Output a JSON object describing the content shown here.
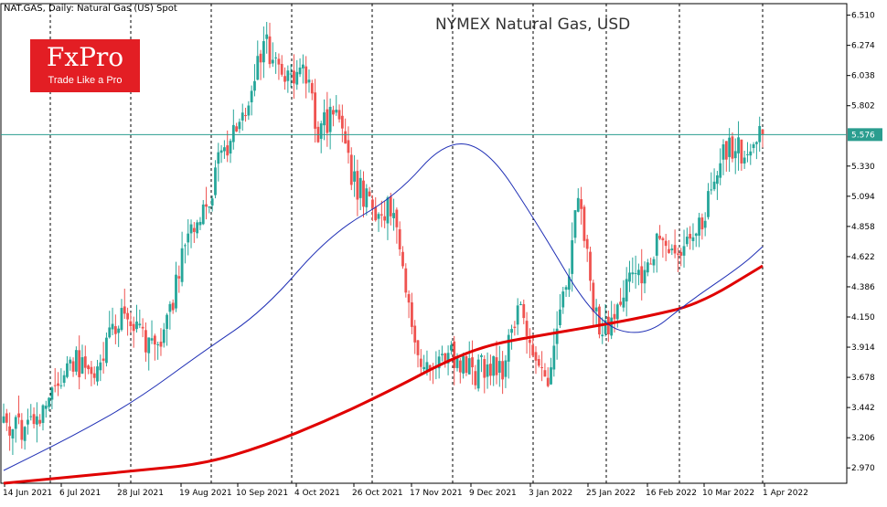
{
  "header": {
    "symbol_label": "NAT.GAS, Daily:  Natural Gas (US) Spot",
    "title": "NYMEX Natural Gas, USD"
  },
  "logo": {
    "brand": "FxPro",
    "tagline": "Trade Like a Pro",
    "color": "#e31e24"
  },
  "colors": {
    "bull": "#26a69a",
    "bear": "#ef5350",
    "ma_short": "#1f2fb5",
    "ma_long": "#e00000",
    "price_line": "#2a9d8f"
  },
  "chart_data": {
    "type": "candlestick",
    "title": "NYMEX Natural Gas, USD",
    "ylim": [
      2.85,
      6.6
    ],
    "y_ticks": [
      "6.510",
      "6.274",
      "6.038",
      "5.802",
      "5.576",
      "5.330",
      "5.094",
      "4.858",
      "4.622",
      "4.386",
      "4.150",
      "3.914",
      "3.678",
      "3.442",
      "3.206",
      "2.970"
    ],
    "x_ticks": [
      "14 Jun 2021",
      "6 Jul 2021",
      "28 Jul 2021",
      "19 Aug 2021",
      "10 Sep 2021",
      "4 Oct 2021",
      "26 Oct 2021",
      "17 Nov 2021",
      "9 Dec 2021",
      "3 Jan 2022",
      "25 Jan 2022",
      "16 Feb 2022",
      "10 Mar 2022",
      "1 Apr 2022"
    ],
    "current_price": "5.576",
    "x_start_date": "2021-06-14",
    "trend_anchors": [
      [
        0,
        3.3
      ],
      [
        8,
        3.25
      ],
      [
        22,
        3.8
      ],
      [
        30,
        3.75
      ],
      [
        38,
        4.15
      ],
      [
        45,
        4.0
      ],
      [
        52,
        3.9
      ],
      [
        60,
        4.7
      ],
      [
        65,
        4.9
      ],
      [
        72,
        5.4
      ],
      [
        76,
        5.6
      ],
      [
        82,
        5.95
      ],
      [
        86,
        6.3
      ],
      [
        90,
        6.1
      ],
      [
        96,
        5.95
      ],
      [
        100,
        6.05
      ],
      [
        104,
        5.6
      ],
      [
        110,
        5.75
      ],
      [
        116,
        5.2
      ],
      [
        122,
        5.0
      ],
      [
        128,
        5.0
      ],
      [
        131,
        4.7
      ],
      [
        135,
        4.0
      ],
      [
        140,
        3.75
      ],
      [
        148,
        3.85
      ],
      [
        155,
        3.7
      ],
      [
        160,
        3.8
      ],
      [
        165,
        3.75
      ],
      [
        170,
        4.2
      ],
      [
        176,
        3.9
      ],
      [
        180,
        3.7
      ],
      [
        186,
        4.4
      ],
      [
        190,
        5.1
      ],
      [
        194,
        4.4
      ],
      [
        197,
        4.0
      ],
      [
        202,
        4.1
      ],
      [
        206,
        4.4
      ],
      [
        212,
        4.5
      ],
      [
        216,
        4.7
      ],
      [
        220,
        4.6
      ],
      [
        228,
        4.7
      ],
      [
        232,
        5.0
      ],
      [
        238,
        5.4
      ],
      [
        242,
        5.5
      ],
      [
        244,
        5.4
      ],
      [
        248,
        5.5
      ],
      [
        251,
        5.6
      ]
    ],
    "ma_short": [
      [
        0,
        2.95
      ],
      [
        23,
        3.22
      ],
      [
        44,
        3.5
      ],
      [
        66,
        3.88
      ],
      [
        86,
        4.2
      ],
      [
        108,
        4.8
      ],
      [
        130,
        5.1
      ],
      [
        146,
        5.53
      ],
      [
        160,
        5.47
      ],
      [
        176,
        4.9
      ],
      [
        196,
        4.1
      ],
      [
        212,
        3.99
      ],
      [
        226,
        4.26
      ],
      [
        244,
        4.55
      ],
      [
        251,
        4.7
      ]
    ],
    "ma_long": [
      [
        0,
        2.85
      ],
      [
        23,
        2.9
      ],
      [
        44,
        2.95
      ],
      [
        66,
        3.0
      ],
      [
        86,
        3.14
      ],
      [
        108,
        3.35
      ],
      [
        130,
        3.6
      ],
      [
        146,
        3.8
      ],
      [
        160,
        3.93
      ],
      [
        176,
        4.0
      ],
      [
        196,
        4.08
      ],
      [
        212,
        4.15
      ],
      [
        230,
        4.25
      ],
      [
        251,
        4.55
      ]
    ]
  }
}
